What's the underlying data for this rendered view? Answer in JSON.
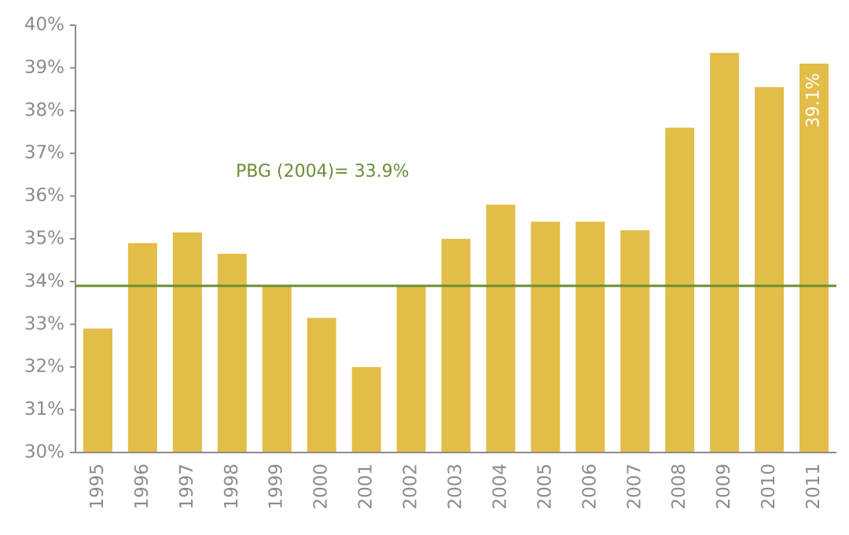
{
  "chart_data": {
    "type": "bar",
    "categories": [
      "1995",
      "1996",
      "1997",
      "1998",
      "1999",
      "2000",
      "2001",
      "2002",
      "2003",
      "2004",
      "2005",
      "2006",
      "2007",
      "2008",
      "2009",
      "2010",
      "2011"
    ],
    "values": [
      32.9,
      34.9,
      35.15,
      34.65,
      33.9,
      33.15,
      32.0,
      33.9,
      35.0,
      35.8,
      35.4,
      35.4,
      35.2,
      37.6,
      39.35,
      38.55,
      39.1
    ],
    "ylim": [
      30,
      40
    ],
    "y_ticks": [
      "30%",
      "31%",
      "32%",
      "33%",
      "34%",
      "35%",
      "36%",
      "37%",
      "38%",
      "39%",
      "40%"
    ],
    "reference_line": {
      "value": 33.9,
      "label": "PBG (2004)= 33.9%"
    },
    "data_labels": [
      {
        "category": "2011",
        "text": "39.1%"
      }
    ],
    "grid": false,
    "colors": {
      "bar": "#e2bd48",
      "reference_line": "#6b8e33",
      "axis": "#8c8c8c",
      "tick_text": "#8c8c8c",
      "data_label": "#ffffff"
    }
  }
}
